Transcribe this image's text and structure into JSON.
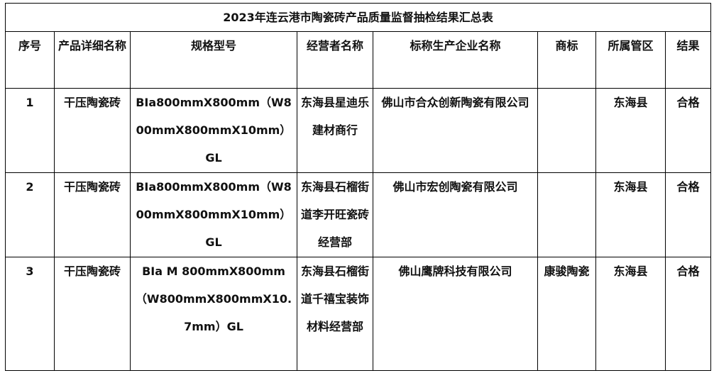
{
  "title": "2023年连云港市陶瓷砖产品质量监督抽检结果汇总表",
  "headers": [
    "序号",
    "产品详细名称",
    "规格型号",
    "经营者名称",
    "标称生产企业名称",
    "商标",
    "所属管区",
    "结果"
  ],
  "rows": [
    [
      "1",
      "干压陶瓷砖",
      "BIa800mmX800mm（W800mmX800mmX10mm）GL",
      "东海县星迪乐建材商行",
      "佛山市合众创新陶瓷有限公司",
      "",
      "东海县",
      "合格"
    ],
    [
      "2",
      "干压陶瓷砖",
      "BIa800mmX800mm（W800mmX800mmX10mm）GL",
      "东海县石榴街道李开旺瓷砖经营部",
      "佛山市宏创陶瓷有限公司",
      "",
      "东海县",
      "合格"
    ],
    [
      "3",
      "干压陶瓷砖",
      "BIa M 800mmX800mm（W800mmX800mmX10.7mm）GL",
      "东海县石榴街道千禧宝装饰材料经营部",
      "佛山鹰牌科技有限公司",
      "康骏陶瓷",
      "东海县",
      "合格"
    ]
  ]
}
